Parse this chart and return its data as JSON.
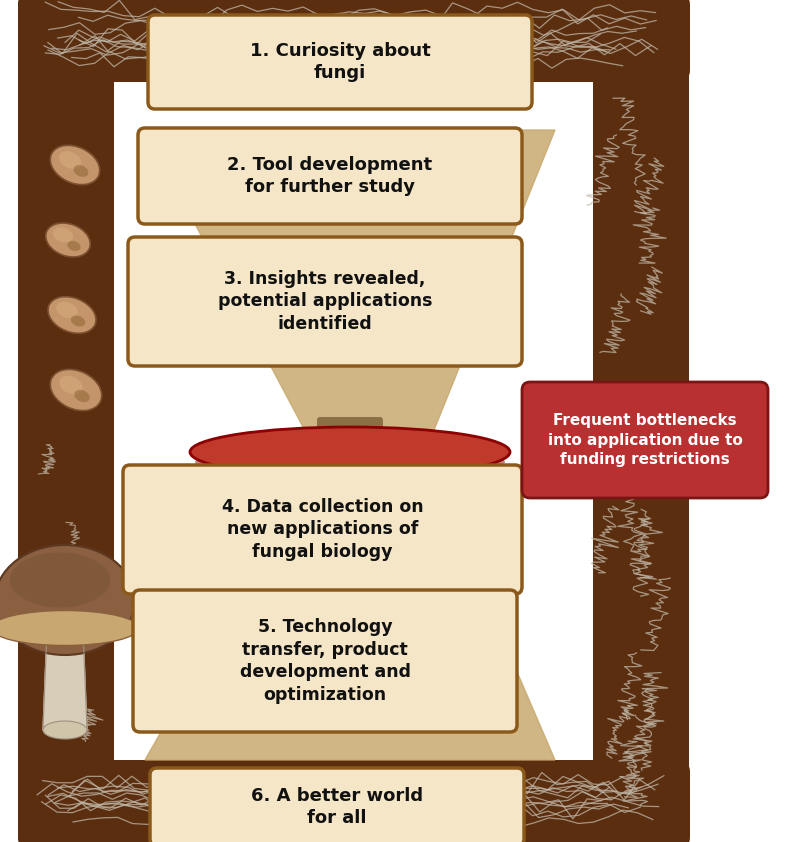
{
  "bg_color": "#ffffff",
  "frame_fill": "#5C2E10",
  "frame_fill2": "#7B3F1A",
  "box_fill": "#F5E6C8",
  "box_edge": "#8B5A1A",
  "box_text_color": "#111111",
  "bottleneck_fill": "#B83030",
  "bottleneck_edge": "#7B1515",
  "bottleneck_text": "#ffffff",
  "funnel_color": "#C8A96E",
  "funnel_dark": "#8B7045",
  "waist_fill": "#C0392B",
  "waist_edge": "#8B0000",
  "spore_fill": "#C4956A",
  "spore_edge": "#7B5030",
  "mycelium_color": "#C0B8A8",
  "steps": [
    "1. Curiosity about\nfungi",
    "2. Tool development\nfor further study",
    "3. Insights revealed,\npotential applications\nidentified",
    "4. Data collection on\nnew applications of\nfungal biology",
    "5. Technology\ntransfer, product\ndevelopment and\noptimization",
    "6. A better world\nfor all"
  ],
  "bottleneck_label": "Frequent bottlenecks\ninto application due to\nfunding restrictions"
}
